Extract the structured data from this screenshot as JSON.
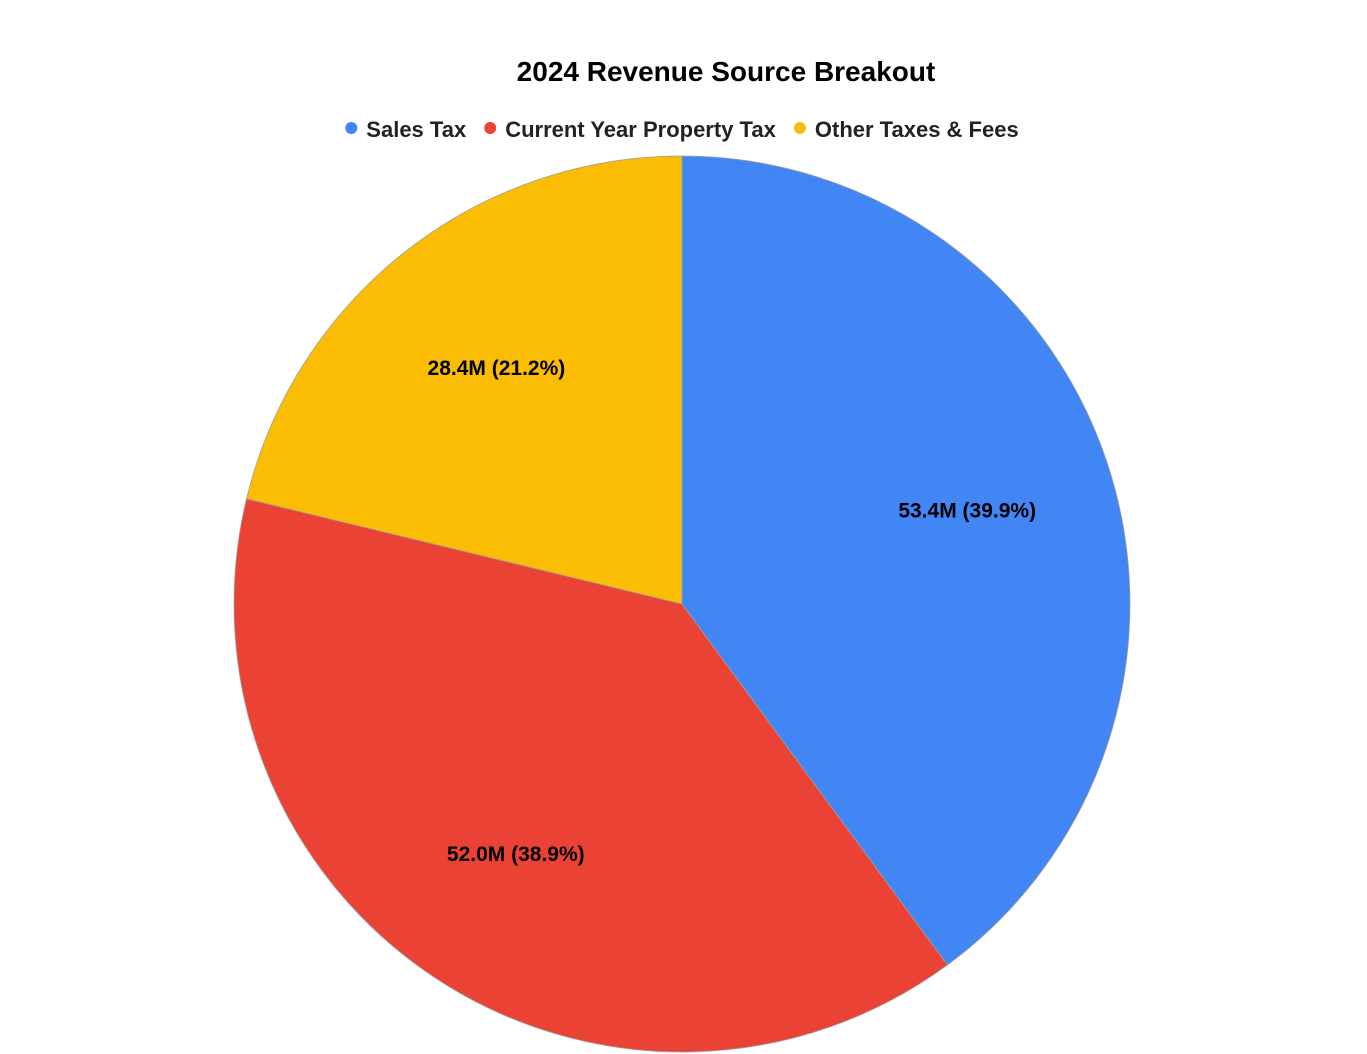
{
  "chart_data": {
    "type": "pie",
    "title": "2024 Revenue Source Breakout",
    "legend_position": "top",
    "start_angle_deg": 0,
    "direction": "clockwise",
    "slices": [
      {
        "name": "Sales Tax",
        "value": 53.4,
        "value_label": "53.4M",
        "percent": 39.9,
        "percent_label": "39.9%",
        "color": "#4285F4"
      },
      {
        "name": "Current Year Property Tax",
        "value": 52.0,
        "value_label": "52.0M",
        "percent": 38.9,
        "percent_label": "38.9%",
        "color": "#EA4335"
      },
      {
        "name": "Other Taxes & Fees",
        "value": 28.4,
        "value_label": "28.4M",
        "percent": 21.2,
        "percent_label": "21.2%",
        "color": "#FBBC04"
      }
    ]
  }
}
